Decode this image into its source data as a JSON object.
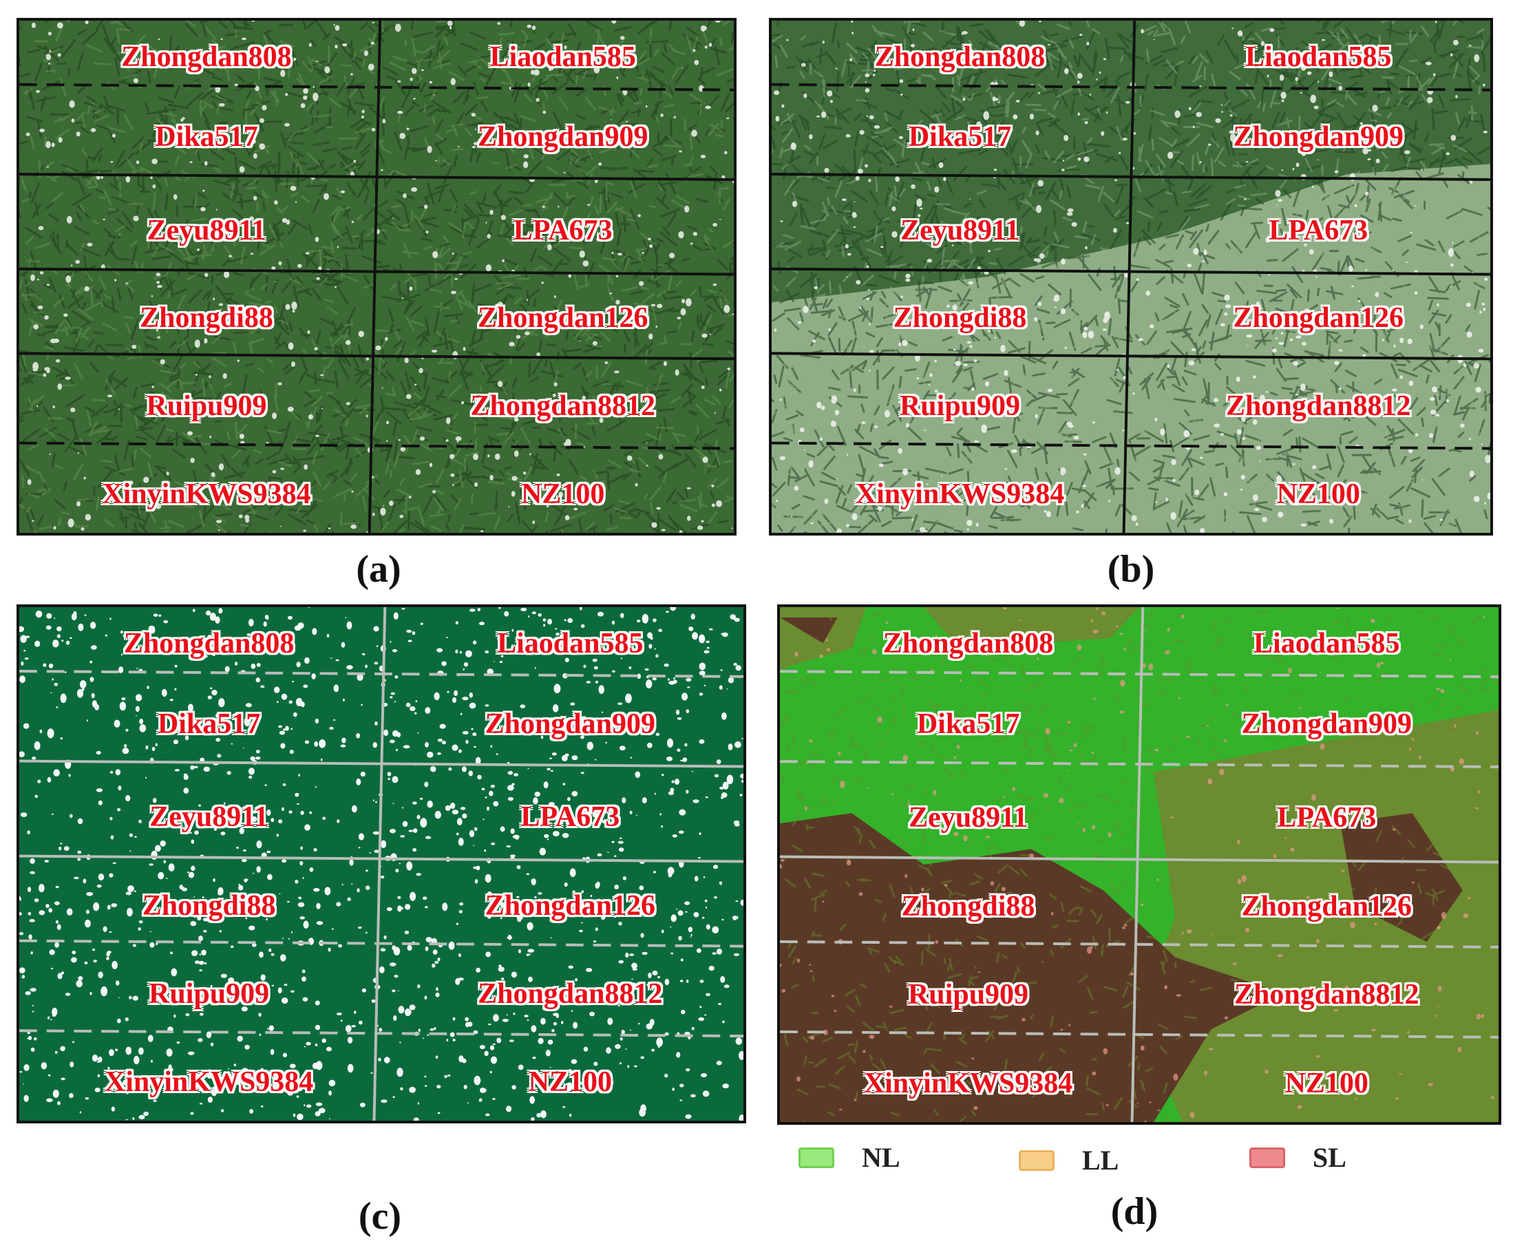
{
  "figure": {
    "panels": [
      {
        "id": "a",
        "caption": "(a)",
        "style": "rgb-field",
        "colors": {
          "base": "#3b6a34",
          "dark": "#1f3f1c",
          "light": "#6a9a5a",
          "speck": "#f2f5ee",
          "grid": "#111111"
        },
        "plots": [
          "Zhongdan808",
          "Liaodan585",
          "Dika517",
          "Zhongdan909",
          "Zeyu8911",
          "LPA673",
          "Zhongdi88",
          "Zhongdan126",
          "Ruipu909",
          "Zhongdan8812",
          "XinyinKWS9384",
          "NZ100"
        ]
      },
      {
        "id": "b",
        "caption": "(b)",
        "style": "rgb-field-lodged",
        "colors": {
          "base": "#3f6c3a",
          "dark": "#234424",
          "light": "#8fae86",
          "speck": "#f2f5ee",
          "grid": "#111111"
        },
        "plots": [
          "Zhongdan808",
          "Liaodan585",
          "Dika517",
          "Zhongdan909",
          "Zeyu8911",
          "LPA673",
          "Zhongdi88",
          "Zhongdan126",
          "Ruipu909",
          "Zhongdan8812",
          "XinyinKWS9384",
          "NZ100"
        ]
      },
      {
        "id": "c",
        "caption": "(c)",
        "style": "mask",
        "colors": {
          "base": "#0b6a3c",
          "speck": "#ffffff",
          "grid": "#b9bdb8"
        },
        "plots": [
          "Zhongdan808",
          "Liaodan585",
          "Dika517",
          "Zhongdan909",
          "Zeyu8911",
          "LPA673",
          "Zhongdi88",
          "Zhongdan126",
          "Ruipu909",
          "Zhongdan8812",
          "XinyinKWS9384",
          "NZ100"
        ]
      },
      {
        "id": "d",
        "caption": "(d)",
        "style": "classified",
        "colors": {
          "nl": "#33b22a",
          "ll": "#6b8c30",
          "sl": "#5a3a26",
          "pink": "#e99a8a",
          "grid": "#b9bdb8"
        },
        "plots": [
          "Zhongdan808",
          "Liaodan585",
          "Dika517",
          "Zhongdan909",
          "Zeyu8911",
          "LPA673",
          "Zhongdi88",
          "Zhongdan126",
          "Ruipu909",
          "Zhongdan8812",
          "XinyinKWS9384",
          "NZ100"
        ]
      }
    ],
    "legend": [
      {
        "label": "NL",
        "color": "#98ea7c",
        "border": "#6fcf52"
      },
      {
        "label": "LL",
        "color": "#f8cf88",
        "border": "#e9b45e"
      },
      {
        "label": "SL",
        "color": "#ee8b8f",
        "border": "#d9646b"
      }
    ]
  }
}
